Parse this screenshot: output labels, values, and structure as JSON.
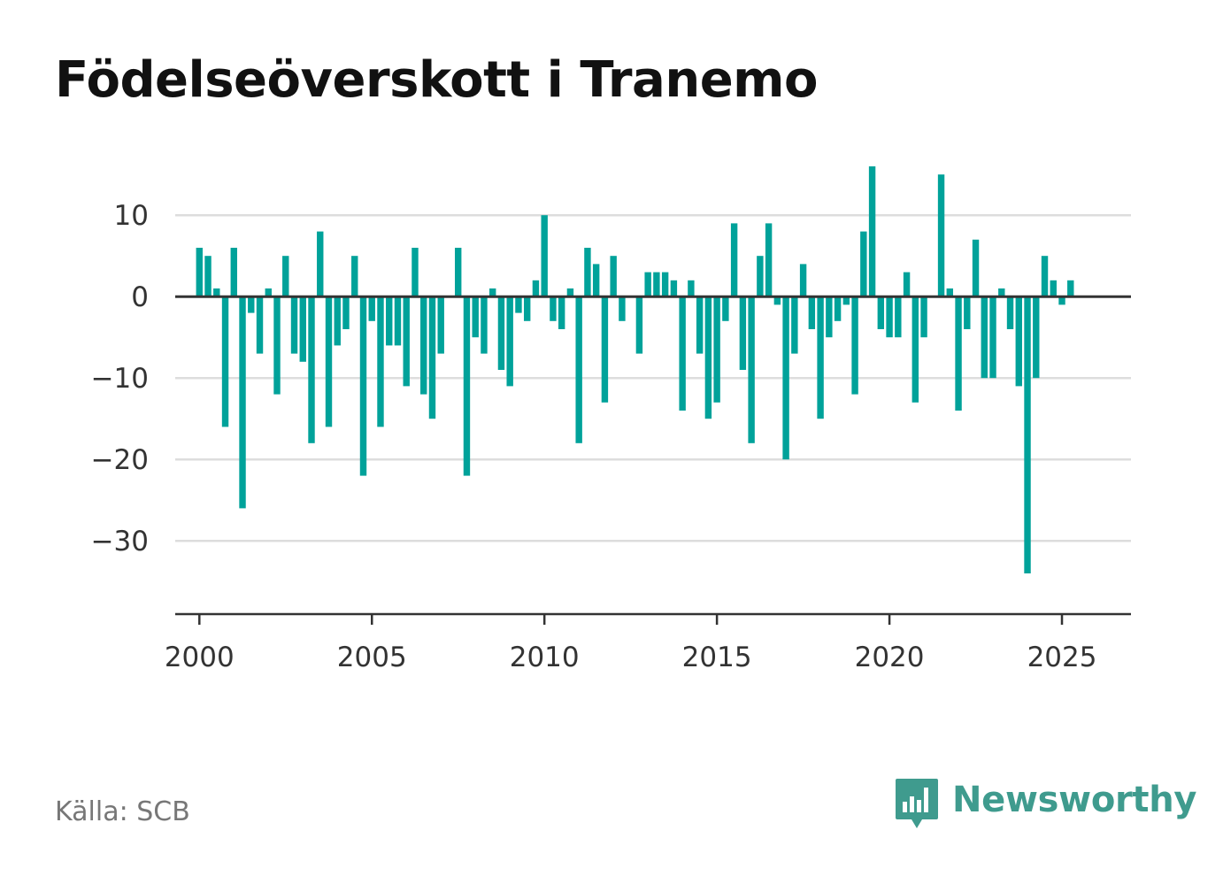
{
  "header": {
    "title": "Födelseöverskott i Tranemo"
  },
  "footer": {
    "source": "Källa: SCB",
    "brand": "Newsworthy",
    "brand_icon": "bar-chart-icon"
  },
  "colors": {
    "bar": "#00a29a",
    "grid": "#dddddd",
    "zero_line": "#333333",
    "axis": "#333333",
    "brand": "#3f9b8e"
  },
  "chart_data": {
    "type": "bar",
    "title": "Födelseöverskott i Tranemo",
    "xlabel": "",
    "ylabel": "",
    "ylim": [
      -39,
      16
    ],
    "xlim": [
      1999.3,
      2027.0
    ],
    "grid": true,
    "legend": "none",
    "y_ticks": [
      10,
      0,
      -10,
      -20,
      -30
    ],
    "y_tick_labels": [
      "10",
      "0",
      "−10",
      "−20",
      "−30"
    ],
    "x_ticks": [
      2000,
      2005,
      2010,
      2015,
      2020,
      2025
    ],
    "x_tick_labels": [
      "2000",
      "2005",
      "2010",
      "2015",
      "2020",
      "2025"
    ],
    "bar_width_years": 0.19,
    "series": [
      {
        "start_year": 2000,
        "step": 0.25,
        "values": [
          6,
          5,
          1,
          -16,
          6,
          -26,
          -2,
          -7,
          1,
          -12,
          5,
          -7,
          -8,
          -18,
          8,
          -16,
          -6,
          -4,
          5,
          -22,
          -3,
          -16,
          -6,
          -6,
          -11,
          6,
          -12,
          -15,
          -7,
          0,
          6,
          -22,
          -5,
          -7,
          1,
          -9,
          -11,
          -2,
          -3,
          2,
          10,
          -3,
          -4,
          1,
          -18,
          6,
          4,
          -13,
          5,
          -3,
          0,
          -7,
          3,
          3,
          3,
          2,
          -14,
          2,
          -7,
          -15,
          -13,
          -3,
          9,
          -9,
          -18,
          5,
          9,
          -1,
          -20,
          -7,
          4,
          -4,
          -15,
          -5,
          -3,
          -1,
          -12,
          8,
          16,
          -4,
          -5,
          -5,
          3,
          -13,
          -5,
          0,
          15,
          1,
          -14,
          -4,
          7,
          -10,
          -10,
          1,
          -4,
          -11,
          -34,
          -10,
          5,
          2,
          -1,
          2
        ]
      }
    ]
  }
}
